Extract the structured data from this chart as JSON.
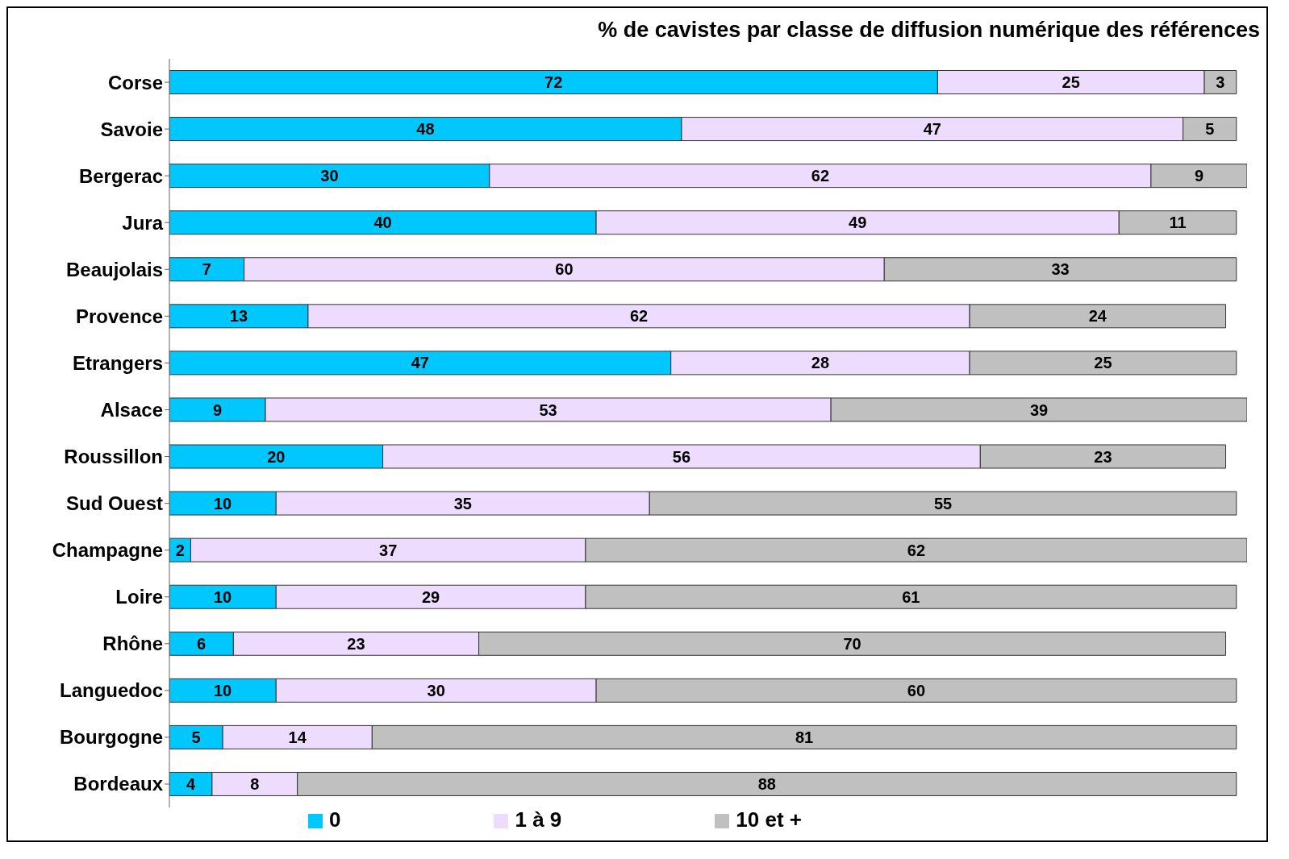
{
  "chart_data": {
    "type": "bar",
    "orientation": "horizontal",
    "stacked": true,
    "title": "% de cavistes par classe de diffusion numérique des références",
    "categories": [
      "Corse",
      "Savoie",
      "Bergerac",
      "Jura",
      "Beaujolais",
      "Provence",
      "Etrangers",
      "Alsace",
      "Roussillon",
      "Sud Ouest",
      "Champagne",
      "Loire",
      "Rhône",
      "Languedoc",
      "Bourgogne",
      "Bordeaux"
    ],
    "series": [
      {
        "name": "0",
        "color": "#00c8ff",
        "values": [
          72,
          48,
          30,
          40,
          7,
          13,
          47,
          9,
          20,
          10,
          2,
          10,
          6,
          10,
          5,
          4
        ]
      },
      {
        "name": "1 à 9",
        "color": "#eedcff",
        "values": [
          25,
          47,
          62,
          49,
          60,
          62,
          28,
          53,
          56,
          35,
          37,
          29,
          23,
          30,
          14,
          8
        ]
      },
      {
        "name": "10 et +",
        "color": "#c0c0c0",
        "values": [
          3,
          5,
          9,
          11,
          33,
          24,
          25,
          39,
          23,
          55,
          62,
          61,
          70,
          60,
          81,
          88
        ]
      }
    ],
    "data_labels": true,
    "legend": "bottom",
    "grid": false
  }
}
